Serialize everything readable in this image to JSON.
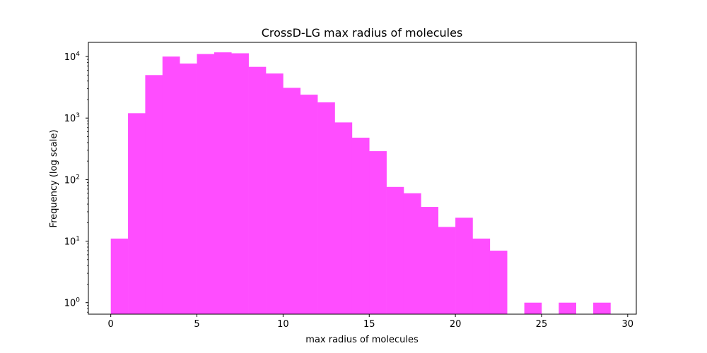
{
  "chart_data": {
    "type": "bar",
    "title": "CrossD-LG max radius of molecules",
    "xlabel": "max radius of molecules",
    "ylabel": "Frequency (log scale)",
    "y_scale": "log",
    "grid": false,
    "color": "#ff4dff",
    "xlim": [
      -1.3,
      30.5
    ],
    "ylim": [
      0.65,
      17000
    ],
    "x_ticks": [
      0,
      5,
      10,
      15,
      20,
      25,
      30
    ],
    "x_tick_labels": [
      "0",
      "5",
      "10",
      "15",
      "20",
      "25",
      "30"
    ],
    "y_ticks": [
      1,
      10,
      100,
      1000,
      10000
    ],
    "y_tick_bases": [
      "10",
      "10",
      "10",
      "10",
      "10"
    ],
    "y_tick_exponents": [
      "0",
      "1",
      "2",
      "3",
      "4"
    ],
    "bins": [
      {
        "x0": 0,
        "x1": 1,
        "count": 11
      },
      {
        "x0": 1,
        "x1": 2,
        "count": 1200
      },
      {
        "x0": 2,
        "x1": 3,
        "count": 5000
      },
      {
        "x0": 3,
        "x1": 4,
        "count": 10000
      },
      {
        "x0": 4,
        "x1": 5,
        "count": 7700
      },
      {
        "x0": 5,
        "x1": 6,
        "count": 11000
      },
      {
        "x0": 6,
        "x1": 7,
        "count": 11700
      },
      {
        "x0": 7,
        "x1": 8,
        "count": 11300
      },
      {
        "x0": 8,
        "x1": 9,
        "count": 6800
      },
      {
        "x0": 9,
        "x1": 10,
        "count": 5300
      },
      {
        "x0": 10,
        "x1": 11,
        "count": 3100
      },
      {
        "x0": 11,
        "x1": 12,
        "count": 2400
      },
      {
        "x0": 12,
        "x1": 13,
        "count": 1800
      },
      {
        "x0": 13,
        "x1": 14,
        "count": 850
      },
      {
        "x0": 14,
        "x1": 15,
        "count": 480
      },
      {
        "x0": 15,
        "x1": 16,
        "count": 290
      },
      {
        "x0": 16,
        "x1": 17,
        "count": 76
      },
      {
        "x0": 17,
        "x1": 18,
        "count": 60
      },
      {
        "x0": 18,
        "x1": 19,
        "count": 36
      },
      {
        "x0": 19,
        "x1": 20,
        "count": 17
      },
      {
        "x0": 20,
        "x1": 21,
        "count": 24
      },
      {
        "x0": 21,
        "x1": 22,
        "count": 11
      },
      {
        "x0": 22,
        "x1": 23,
        "count": 7
      },
      {
        "x0": 24,
        "x1": 25,
        "count": 1
      },
      {
        "x0": 26,
        "x1": 27,
        "count": 1
      },
      {
        "x0": 28,
        "x1": 29,
        "count": 1
      }
    ]
  }
}
